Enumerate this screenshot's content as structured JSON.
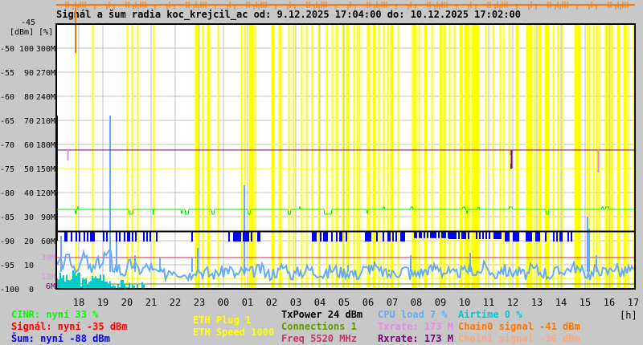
{
  "chart_data": {
    "type": "line",
    "title": "Signál a šum radia koc_krejcil_ac od: 9.12.2025 17:04:00 do: 10.12.2025 17:02:00",
    "x_start": "17:04",
    "x_end": "17:04",
    "x_unit_label": "[h]",
    "x_ticks": [
      "18",
      "19",
      "20",
      "21",
      "22",
      "23",
      "00",
      "01",
      "02",
      "03",
      "04",
      "05",
      "06",
      "07",
      "08",
      "09",
      "10",
      "11",
      "12",
      "13",
      "14",
      "15",
      "16",
      "17"
    ],
    "y_axis_header": "[dBm] [%]",
    "y_top_label": "-45",
    "y_range_dbm": [
      -100,
      -45
    ],
    "y_range_percent": [
      0,
      110
    ],
    "y_range_rate_M": [
      0,
      330
    ],
    "y_ticks": [
      {
        "dbm": "-50",
        "pct": "100",
        "rate": "300M"
      },
      {
        "dbm": "-55",
        "pct": "90",
        "rate": "270M"
      },
      {
        "dbm": "-60",
        "pct": "80",
        "rate": "240M"
      },
      {
        "dbm": "-65",
        "pct": "70",
        "rate": "210M"
      },
      {
        "dbm": "-70",
        "pct": "60",
        "rate": "180M"
      },
      {
        "dbm": "-75",
        "pct": "50",
        "rate": "150M"
      },
      {
        "dbm": "-80",
        "pct": "40",
        "rate": "120M"
      },
      {
        "dbm": "-85",
        "pct": "30",
        "rate": "90M"
      },
      {
        "dbm": "-90",
        "pct": "20",
        "rate": "60M"
      },
      {
        "dbm": "-95",
        "pct": "10",
        "rate": ""
      },
      {
        "dbm": "-100",
        "pct": "0",
        "rate": ""
      }
    ],
    "rate_markers": [
      {
        "label": "39M",
        "value": 39,
        "color": "#ee88ee",
        "line_color": "#dd2255"
      },
      {
        "label": "13M",
        "value": 13,
        "color": "#ee88ee",
        "line_color": "#ffff00"
      },
      {
        "label": "6M",
        "value": 6,
        "color": "#800080",
        "line_color": "#558800"
      }
    ],
    "grid": true,
    "eth_plug_events": [
      "17:51",
      "18:33",
      "19:59",
      "20:11",
      "20:25",
      "21:05",
      "22:49",
      "22:52",
      "22:56",
      "23:07",
      "23:19",
      "23:23",
      "23:45",
      "00:43",
      "00:51",
      "01:03",
      "01:07",
      "01:11",
      "01:17",
      "01:59",
      "02:04",
      "02:17",
      "02:21",
      "02:41",
      "02:53",
      "03:13",
      "03:25",
      "03:39",
      "03:55",
      "04:15",
      "04:29",
      "04:39",
      "04:41",
      "04:55",
      "05:05",
      "05:09",
      "05:23",
      "05:32",
      "05:37",
      "05:57",
      "06:01",
      "06:11",
      "06:15",
      "06:25",
      "06:37",
      "06:47",
      "06:55",
      "06:59",
      "07:13",
      "07:49",
      "07:53",
      "07:57",
      "08:05",
      "08:19",
      "08:23",
      "08:37",
      "08:57",
      "09:01",
      "09:07",
      "09:09",
      "09:21",
      "09:33",
      "09:47",
      "09:51",
      "09:59",
      "10:03",
      "10:07",
      "10:09",
      "10:17",
      "10:21",
      "10:25",
      "10:29",
      "10:33",
      "10:51",
      "11:09",
      "11:27",
      "11:35",
      "11:49",
      "12:07",
      "12:11",
      "12:33",
      "12:37",
      "12:41",
      "12:45",
      "12:53",
      "13:03",
      "13:07",
      "13:19",
      "13:23",
      "13:27",
      "13:39",
      "13:51",
      "14:01",
      "14:33",
      "14:37",
      "14:41",
      "14:45",
      "15:03",
      "15:09",
      "15:19",
      "15:27",
      "15:33",
      "15:49",
      "15:53",
      "16:01",
      "16:05",
      "16:19",
      "16:23",
      "16:35",
      "16:39",
      "16:45",
      "16:59"
    ],
    "series": [
      {
        "name": "CINR",
        "unit": "%",
        "color": "#00ee00",
        "base": 33,
        "dips": [
          [
            "17:50",
            "17:54",
            31
          ],
          [
            "20:04",
            "20:16",
            31
          ],
          [
            "21:04",
            "21:06",
            31
          ],
          [
            "22:14",
            "22:18",
            31
          ],
          [
            "22:24",
            "22:34",
            31
          ],
          [
            "23:30",
            "23:38",
            31
          ],
          [
            "01:00",
            "01:08",
            31
          ],
          [
            "02:40",
            "02:48",
            31
          ],
          [
            "04:10",
            "04:30",
            31
          ],
          [
            "05:56",
            "06:00",
            31
          ],
          [
            "10:04",
            "10:08",
            31
          ],
          [
            "13:22",
            "13:30",
            31
          ]
        ],
        "bumps": [
          [
            "17:56",
            "18:00",
            34
          ],
          [
            "03:08",
            "03:12",
            34
          ],
          [
            "06:36",
            "06:42",
            34
          ],
          [
            "07:45",
            "07:52",
            34
          ],
          [
            "09:54",
            "10:02",
            34
          ],
          [
            "10:32",
            "10:38",
            34
          ],
          [
            "11:50",
            "12:00",
            34
          ],
          [
            "15:40",
            "15:46",
            34
          ],
          [
            "15:50",
            "16:00",
            34
          ]
        ]
      },
      {
        "name": "Noise",
        "unit": "dBm",
        "color": "#0000ff",
        "base": -88,
        "drop_ranges": [
          [
            "17:04",
            "18:40",
            -90
          ],
          [
            "19:00",
            "21:24",
            -90
          ],
          [
            "22:40",
            "22:48",
            -90
          ],
          [
            "00:00",
            "01:30",
            -90
          ],
          [
            "03:40",
            "05:10",
            -90
          ],
          [
            "05:40",
            "07:30",
            -90
          ],
          [
            "07:50",
            "09:20",
            -89.3
          ],
          [
            "09:20",
            "11:40",
            -89.5
          ],
          [
            "11:40",
            "14:30",
            -90
          ],
          [
            "14:40",
            "17:04",
            -90
          ]
        ]
      },
      {
        "name": "Rxrate",
        "unit": "M",
        "color": "#800080",
        "base": 173,
        "dips": [
          [
            "11:55",
            "11:57",
            150
          ]
        ]
      },
      {
        "name": "Txrate",
        "unit": "M",
        "color": "#ee88ee",
        "base": 173,
        "dips": [
          [
            "17:31",
            "17:33",
            160
          ],
          [
            "11:53",
            "11:55",
            167
          ],
          [
            "15:31",
            "15:33",
            145
          ]
        ]
      },
      {
        "name": "ETH Speed",
        "unit": "M",
        "color": "#ffff00",
        "base": 150
      },
      {
        "name": "CPU load",
        "unit": "%",
        "color": "#66aaff",
        "values": [
          10,
          12,
          9,
          13,
          8,
          11,
          14,
          9,
          7,
          10,
          8,
          9,
          7,
          6,
          8,
          7,
          6,
          8,
          7,
          6,
          7,
          8,
          6,
          7,
          7,
          8,
          6,
          7,
          9,
          6,
          7,
          8,
          7,
          6,
          8,
          7,
          7,
          6,
          8,
          9,
          7,
          6,
          7,
          8,
          6,
          7,
          8,
          9,
          7,
          6,
          7,
          8,
          7,
          9,
          6,
          8,
          7,
          7,
          6,
          8,
          7,
          6,
          7,
          8,
          9,
          7,
          6,
          8,
          7,
          9,
          7,
          8
        ],
        "spikes": [
          [
            "17:14",
            22
          ],
          [
            "19:16",
            72
          ],
          [
            "19:32",
            20
          ],
          [
            "20:18",
            14
          ],
          [
            "21:20",
            13
          ],
          [
            "22:40",
            13
          ],
          [
            "22:54",
            17
          ],
          [
            "00:50",
            43
          ],
          [
            "05:08",
            10
          ],
          [
            "06:00",
            10
          ],
          [
            "06:50",
            8
          ],
          [
            "07:44",
            14
          ],
          [
            "07:54",
            5
          ],
          [
            "10:12",
            15
          ],
          [
            "14:22",
            8
          ],
          [
            "15:04",
            30
          ],
          [
            "15:08",
            25
          ],
          [
            "15:26",
            14
          ]
        ]
      },
      {
        "name": "Airtime",
        "unit": "%",
        "color": "#00cccc",
        "values": [
          5,
          4,
          6,
          3,
          4,
          5,
          3,
          2,
          2,
          1,
          1,
          0,
          0,
          0,
          0,
          0,
          0,
          0,
          0,
          0,
          0,
          0,
          0,
          0,
          0,
          0,
          0,
          0,
          0,
          0,
          0,
          0,
          0,
          0,
          0,
          0,
          0,
          0,
          0,
          0,
          0,
          0,
          0,
          0,
          0,
          0,
          0,
          0,
          0,
          0,
          0,
          0,
          0,
          0,
          0,
          0,
          0,
          0,
          0,
          0,
          0,
          0,
          0,
          0,
          0,
          0,
          0,
          0,
          0,
          0,
          0,
          0
        ]
      },
      {
        "name": "Chain0 signal",
        "unit": "dBm",
        "color": "#ff7700",
        "spike": [
          "17:50",
          -51
        ]
      }
    ]
  },
  "legend": {
    "cinr": "CINR: nyní 33 %",
    "signal": "Signál: nyní -35 dBm",
    "noise": "Šum: nyní -88 dBm",
    "eth_plug": "ETH Plug 1",
    "eth_speed": "ETH Speed 1000",
    "txpower": "TxPower 24 dBm",
    "connections_label": "Connections",
    "connections_value": "1",
    "freq": "Freq 5520 MHz",
    "cpu": "CPU load 7 %",
    "txrate": "Txrate: 173 M",
    "rxrate": "Rxrate: 173 M",
    "airtime": "Airtime 0 %",
    "chain0": "Chain0 signal -41 dBm",
    "chain1": "Chain1 signal -36 dBm"
  },
  "colors": {
    "background": "#c8c8c8",
    "plot": "#ffffff",
    "grid": "#c0c0c0",
    "cinr": "#00ff00",
    "signal": "#ff0000",
    "noise": "#0000ff",
    "eth": "#ffff00",
    "txpower": "#000000",
    "connections": "#669900",
    "freq": "#cc3366",
    "cpu": "#66aaff",
    "txrate": "#ee88ee",
    "rxrate": "#800080",
    "airtime": "#00cccc",
    "chain0": "#ff7700",
    "chain1": "#ffaa77"
  }
}
